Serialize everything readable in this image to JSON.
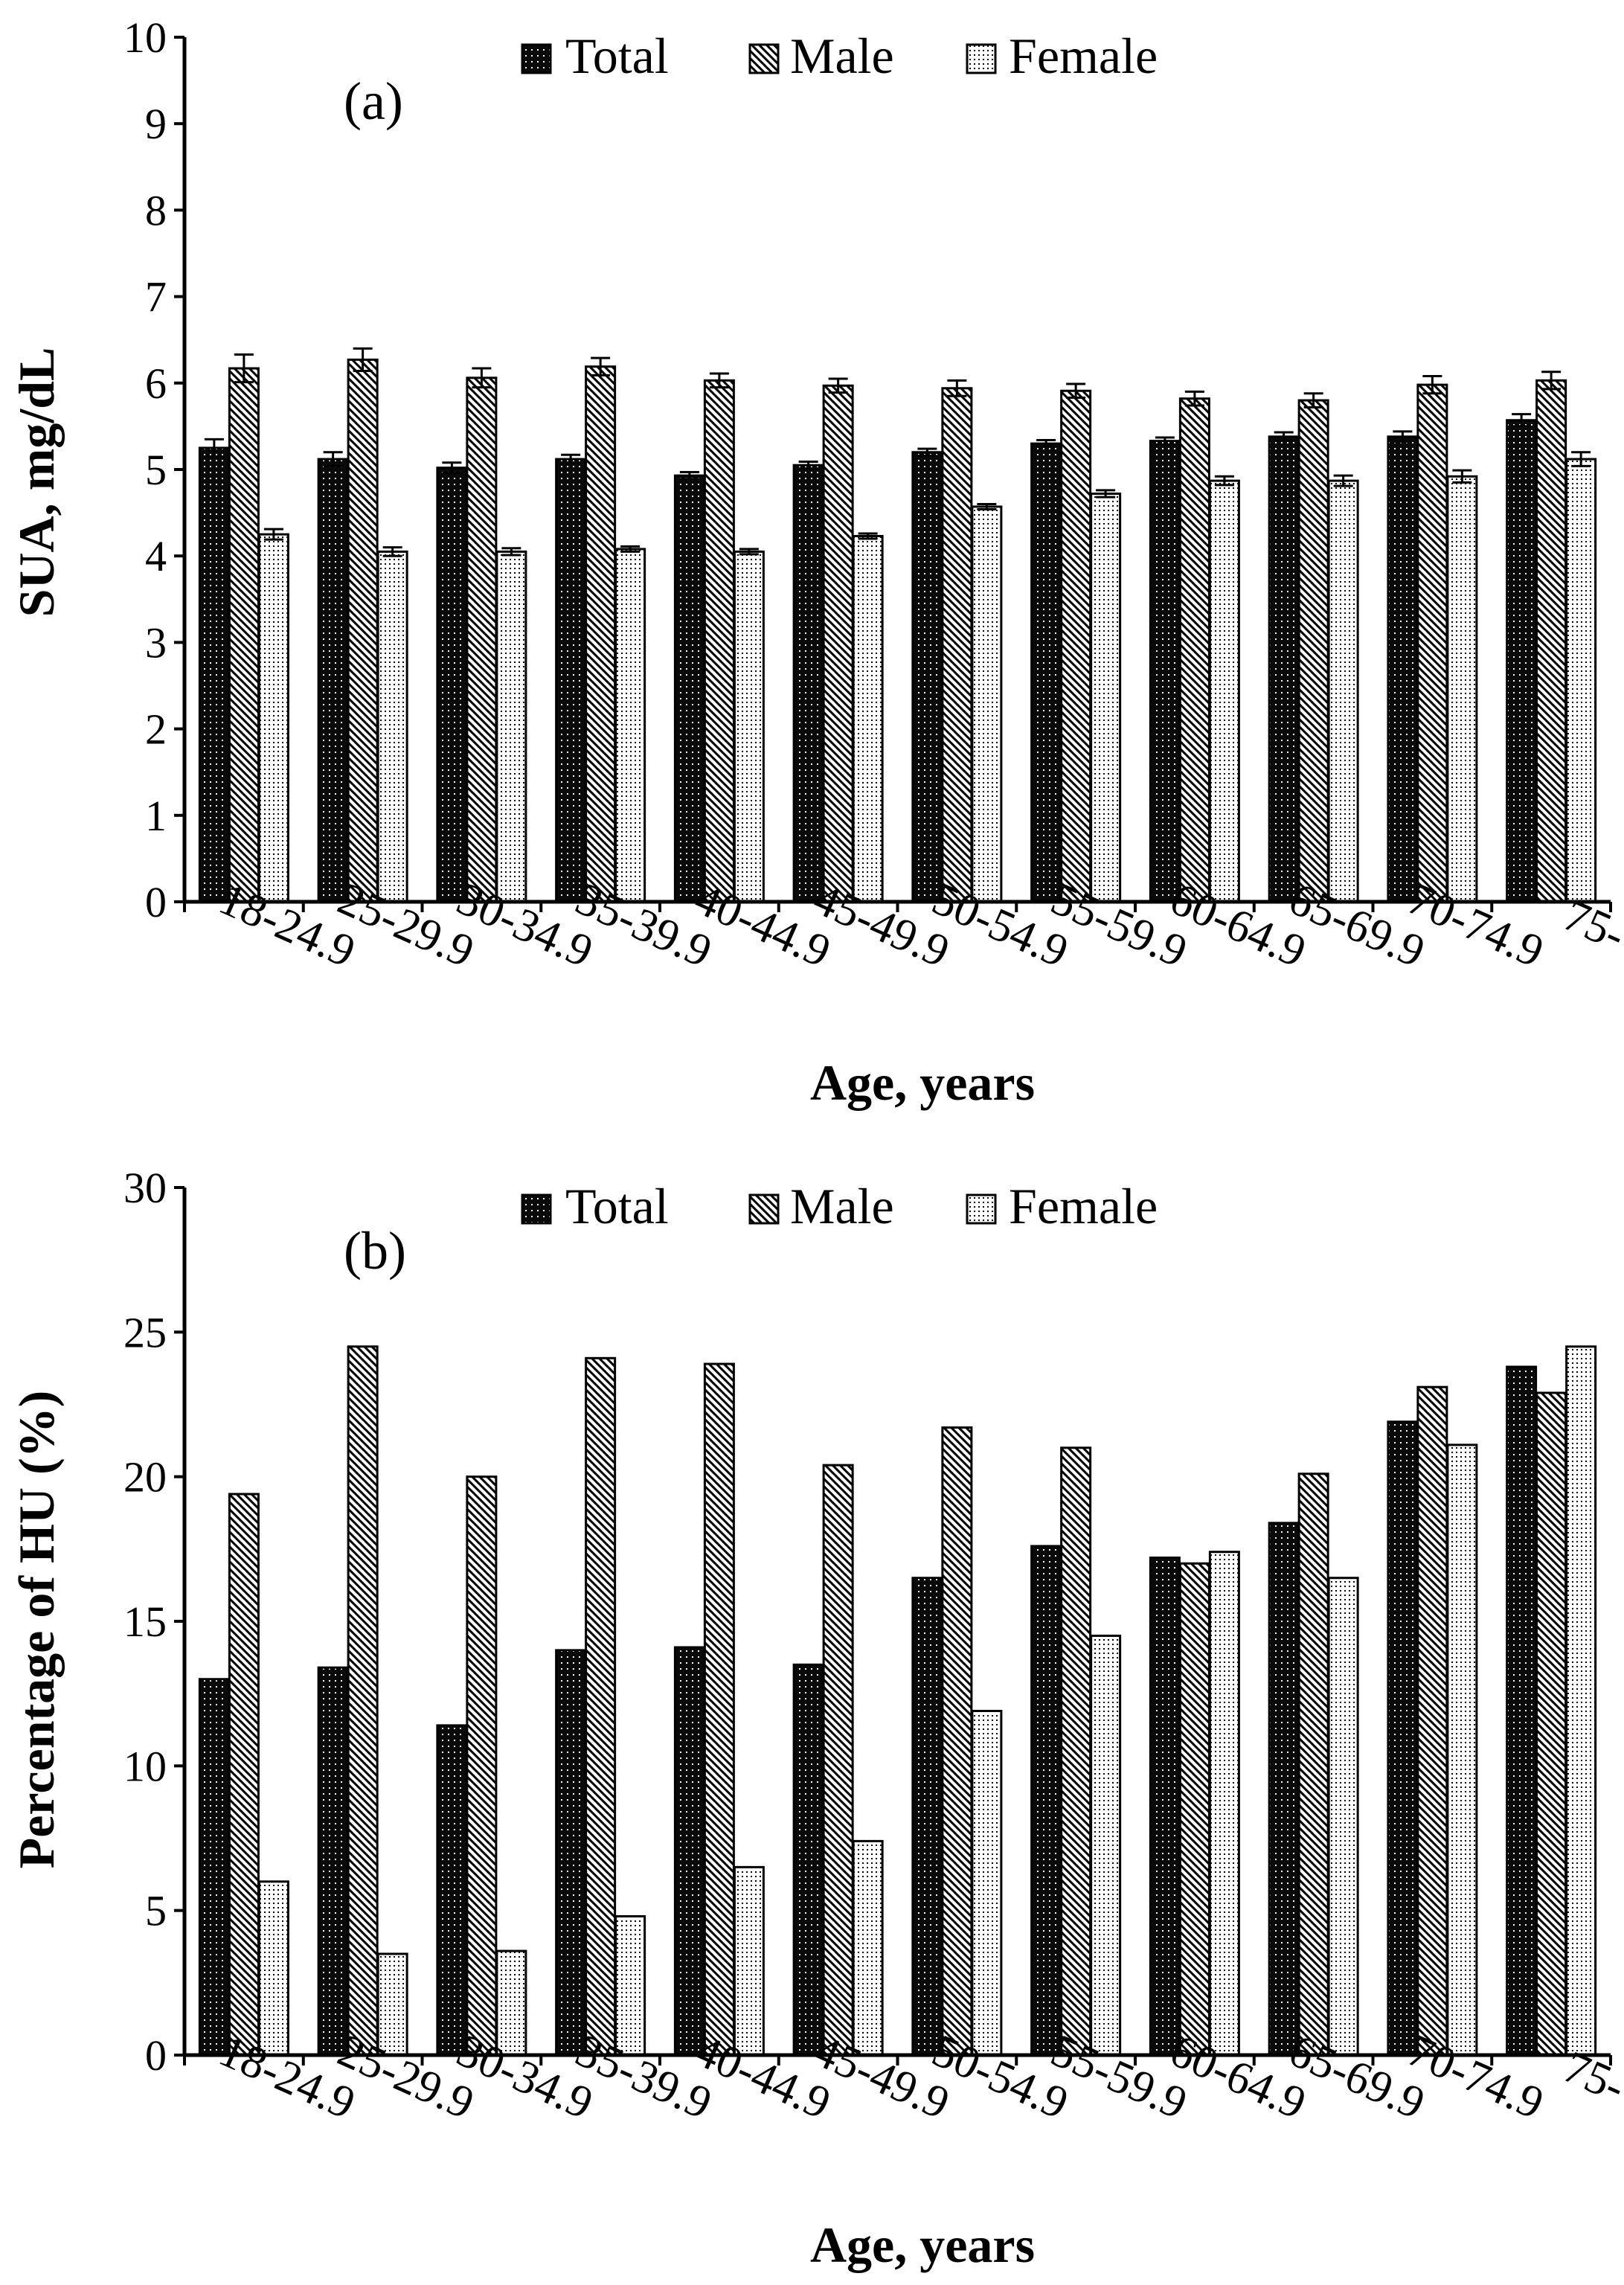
{
  "chart_data": [
    {
      "type": "bar",
      "panel_label": "(a)",
      "title": "",
      "xlabel": "Age, years",
      "ylabel": "SUA, mg/dL",
      "ylim": [
        0,
        10
      ],
      "yticks": [
        "0",
        "1",
        "2",
        "3",
        "4",
        "5",
        "6",
        "7",
        "8",
        "9",
        "10"
      ],
      "categories": [
        "18-24.9",
        "25-29.9",
        "30-34.9",
        "35-39.9",
        "40-44.9",
        "45-49.9",
        "50-54.9",
        "55-59.9",
        "60-64.9",
        "65-69.9",
        "70-74.9",
        "75-"
      ],
      "legend_position": "top-center",
      "error_bars": true,
      "series": [
        {
          "name": "Total",
          "pattern": "dots-dark",
          "values": [
            5.25,
            5.12,
            5.02,
            5.12,
            4.93,
            5.05,
            5.2,
            5.3,
            5.33,
            5.38,
            5.38,
            5.57
          ],
          "errors": [
            0.1,
            0.08,
            0.06,
            0.05,
            0.04,
            0.04,
            0.04,
            0.04,
            0.04,
            0.05,
            0.06,
            0.07
          ]
        },
        {
          "name": "Male",
          "pattern": "diagonal-hatch",
          "values": [
            6.17,
            6.27,
            6.06,
            6.19,
            6.03,
            5.97,
            5.94,
            5.91,
            5.82,
            5.8,
            5.98,
            6.03
          ],
          "errors": [
            0.16,
            0.13,
            0.11,
            0.1,
            0.08,
            0.08,
            0.09,
            0.08,
            0.08,
            0.08,
            0.1,
            0.1
          ]
        },
        {
          "name": "Female",
          "pattern": "dots-light",
          "values": [
            4.25,
            4.05,
            4.05,
            4.08,
            4.05,
            4.23,
            4.57,
            4.72,
            4.87,
            4.87,
            4.92,
            5.12
          ],
          "errors": [
            0.06,
            0.05,
            0.04,
            0.03,
            0.03,
            0.03,
            0.03,
            0.04,
            0.05,
            0.06,
            0.07,
            0.08
          ]
        }
      ]
    },
    {
      "type": "bar",
      "panel_label": "(b)",
      "title": "",
      "xlabel": "Age, years",
      "ylabel": "Percentage of HU (%)",
      "ylim": [
        0,
        30
      ],
      "yticks": [
        "0",
        "5",
        "10",
        "15",
        "20",
        "25",
        "30"
      ],
      "categories": [
        "18-24.9",
        "25-29.9",
        "30-34.9",
        "35-39.9",
        "40-44.9",
        "45-49.9",
        "50-54.9",
        "55-59.9",
        "60-64.9",
        "65-69.9",
        "70-74.9",
        "75-"
      ],
      "legend_position": "top-center",
      "error_bars": false,
      "series": [
        {
          "name": "Total",
          "pattern": "dots-dark",
          "values": [
            13.0,
            13.4,
            11.4,
            14.0,
            14.1,
            13.5,
            16.5,
            17.6,
            17.2,
            18.4,
            21.9,
            23.8
          ]
        },
        {
          "name": "Male",
          "pattern": "diagonal-hatch",
          "values": [
            19.4,
            24.5,
            20.0,
            24.1,
            23.9,
            20.4,
            21.7,
            21.0,
            17.0,
            20.1,
            23.1,
            22.9
          ]
        },
        {
          "name": "Female",
          "pattern": "dots-light",
          "values": [
            6.0,
            3.5,
            3.6,
            4.8,
            6.5,
            7.4,
            11.9,
            14.5,
            17.4,
            16.5,
            21.1,
            24.5
          ]
        }
      ]
    }
  ],
  "colors": {
    "axis": "#000000",
    "background": "#ffffff",
    "bar_stroke": "#000000"
  }
}
